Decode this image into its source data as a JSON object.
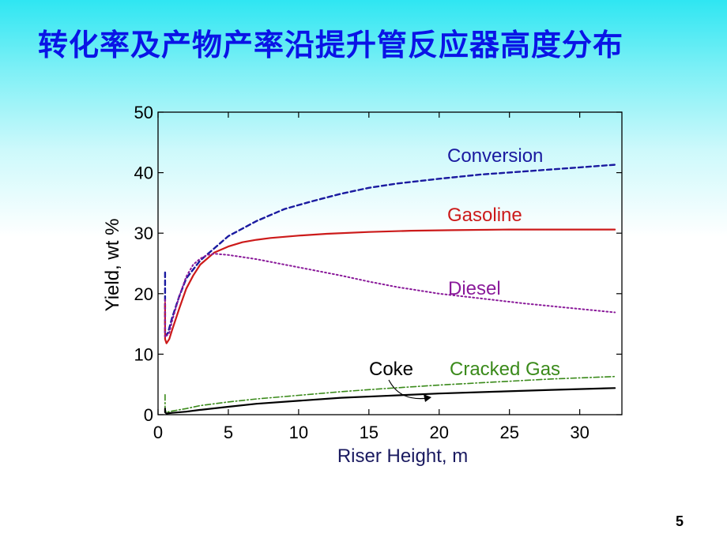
{
  "slide": {
    "title": "转化率及产物产率沿提升管反应器高度分布",
    "page_number": "5"
  },
  "colors": {
    "title": "#0a14e6",
    "conversion": "#1a1aa0",
    "gasoline": "#cc1a1a",
    "diesel": "#8a1a9a",
    "cracked_gas": "#3a8a1a",
    "coke": "#000000"
  },
  "chart_data": {
    "type": "line",
    "xlabel": "Riser  Height,  m",
    "ylabel": "Yield, wt %",
    "xlim": [
      0,
      33
    ],
    "ylim": [
      0,
      50
    ],
    "xticks": [
      0,
      5,
      10,
      15,
      20,
      25,
      30
    ],
    "yticks": [
      0,
      10,
      20,
      30,
      40,
      50
    ],
    "grid": false,
    "annotations": [
      {
        "text": "Conversion",
        "series": "Conversion"
      },
      {
        "text": "Gasoline",
        "series": "Gasoline"
      },
      {
        "text": "Diesel",
        "series": "Diesel"
      },
      {
        "text": "Cracked Gas",
        "series": "Cracked Gas"
      },
      {
        "text": "Coke",
        "series": "Coke"
      }
    ],
    "series": [
      {
        "name": "Conversion",
        "color": "#1a1aa0",
        "dash": "dashed",
        "x": [
          0.5,
          0.5,
          0.7,
          1.0,
          1.5,
          2.0,
          3.0,
          4.0,
          5.0,
          7.0,
          9.0,
          11.0,
          13.0,
          15.0,
          17.0,
          20.0,
          23.0,
          26.0,
          29.0,
          32.5
        ],
        "y": [
          23.5,
          13.0,
          13.5,
          16.0,
          19.5,
          22.5,
          25.5,
          27.5,
          29.5,
          32.0,
          34.0,
          35.3,
          36.5,
          37.5,
          38.2,
          39.0,
          39.7,
          40.2,
          40.7,
          41.3
        ]
      },
      {
        "name": "Gasoline",
        "color": "#cc1a1a",
        "dash": "solid",
        "x": [
          0.5,
          0.5,
          0.6,
          0.8,
          1.0,
          1.5,
          2.0,
          2.5,
          3.0,
          4.0,
          5.0,
          6.0,
          7.0,
          8.0,
          10.0,
          12.0,
          15.0,
          18.0,
          21.0,
          25.0,
          29.0,
          32.5
        ],
        "y": [
          18.5,
          12.5,
          11.8,
          12.5,
          14.0,
          17.5,
          20.8,
          23.0,
          24.8,
          26.8,
          27.8,
          28.5,
          28.9,
          29.2,
          29.6,
          29.9,
          30.2,
          30.4,
          30.5,
          30.6,
          30.6,
          30.6
        ]
      },
      {
        "name": "Diesel",
        "color": "#8a1a9a",
        "dash": "dotted",
        "x": [
          0.5,
          0.5,
          0.8,
          1.0,
          1.5,
          2.0,
          2.5,
          3.0,
          3.5,
          4.0,
          5.0,
          7.0,
          9.0,
          11.0,
          13.0,
          15.0,
          17.0,
          20.0,
          23.0,
          26.0,
          29.0,
          32.5
        ],
        "y": [
          19.0,
          12.8,
          13.5,
          15.5,
          19.5,
          22.8,
          24.8,
          25.8,
          26.4,
          26.6,
          26.4,
          25.7,
          24.8,
          23.9,
          23.0,
          22.0,
          21.1,
          20.0,
          19.2,
          18.4,
          17.7,
          16.9
        ]
      },
      {
        "name": "Cracked Gas",
        "color": "#3a8a1a",
        "dash": "dashdot",
        "x": [
          0.5,
          0.5,
          0.6,
          1.0,
          2.0,
          3.0,
          5.0,
          7.0,
          10.0,
          13.0,
          16.0,
          20.0,
          24.0,
          28.0,
          32.5
        ],
        "y": [
          3.3,
          0.8,
          0.4,
          0.6,
          1.0,
          1.5,
          2.1,
          2.6,
          3.2,
          3.8,
          4.3,
          4.9,
          5.4,
          5.9,
          6.3
        ]
      },
      {
        "name": "Coke",
        "color": "#000000",
        "dash": "solid",
        "x": [
          0.5,
          0.5,
          0.6,
          1.0,
          2.0,
          3.0,
          5.0,
          7.0,
          10.0,
          13.0,
          16.0,
          20.0,
          24.0,
          28.0,
          32.5
        ],
        "y": [
          1.0,
          0.4,
          0.2,
          0.3,
          0.5,
          0.8,
          1.3,
          1.8,
          2.3,
          2.8,
          3.1,
          3.5,
          3.8,
          4.1,
          4.4
        ]
      }
    ]
  }
}
